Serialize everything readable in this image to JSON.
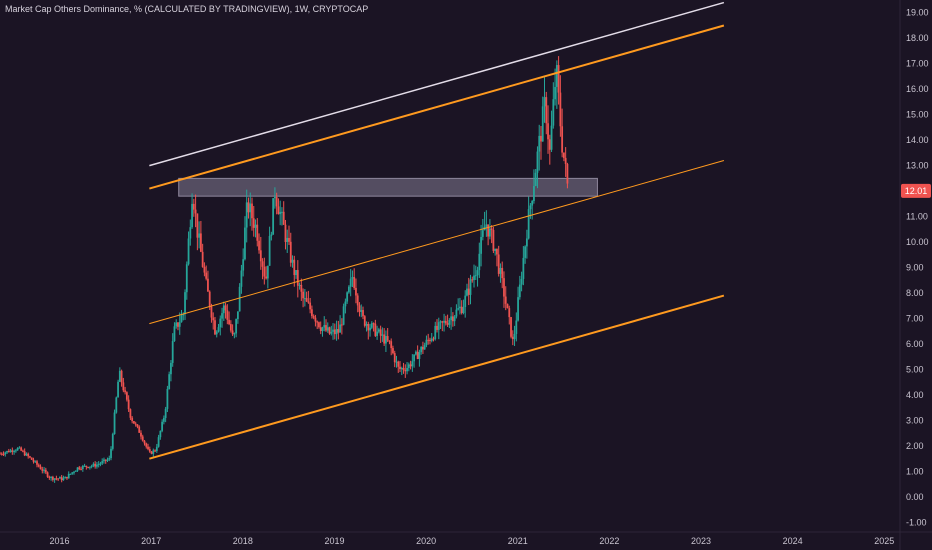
{
  "chart_data": {
    "type": "candlestick",
    "title": "Market Cap Others Dominance, % (CALCULATED BY TRADINGVIEW), 1W, CRYPTOCAP",
    "x_ticks": [
      "2016",
      "2017",
      "2018",
      "2019",
      "2020",
      "2021",
      "2022",
      "2023",
      "2024",
      "2025"
    ],
    "y_ticks": [
      "19.00",
      "18.00",
      "17.00",
      "16.00",
      "15.00",
      "14.00",
      "13.00",
      "12.00",
      "11.00",
      "10.00",
      "9.00",
      "8.00",
      "7.00",
      "6.00",
      "5.00",
      "4.00",
      "3.00",
      "2.00",
      "1.00",
      "0.00",
      "-1.00"
    ],
    "xlim": [
      2015.35,
      2025.15
    ],
    "ylim": [
      -1.3,
      19.5
    ],
    "last_value": "12.01",
    "colors": {
      "up": "#26a69a",
      "down": "#ef5350",
      "channel": "#ff9a1f",
      "top_line": "#e3dce8",
      "zone": "#9c93ad",
      "last_value_badge": "#ef5350"
    },
    "price_path": [
      [
        2015.35,
        1.7
      ],
      [
        2015.55,
        1.9
      ],
      [
        2015.7,
        1.45
      ],
      [
        2015.9,
        0.75
      ],
      [
        2016.05,
        0.7
      ],
      [
        2016.2,
        1.15
      ],
      [
        2016.4,
        1.25
      ],
      [
        2016.55,
        1.5
      ],
      [
        2016.65,
        4.9
      ],
      [
        2016.78,
        3.1
      ],
      [
        2016.88,
        2.5
      ],
      [
        2016.98,
        1.7
      ],
      [
        2017.05,
        1.85
      ],
      [
        2017.15,
        3.3
      ],
      [
        2017.25,
        6.5
      ],
      [
        2017.35,
        7.2
      ],
      [
        2017.45,
        12.1
      ],
      [
        2017.5,
        10.5
      ],
      [
        2017.6,
        8.3
      ],
      [
        2017.7,
        6.5
      ],
      [
        2017.8,
        7.5
      ],
      [
        2017.9,
        6.1
      ],
      [
        2017.95,
        7.5
      ],
      [
        2018.05,
        11.5
      ],
      [
        2018.15,
        10.5
      ],
      [
        2018.25,
        8.5
      ],
      [
        2018.35,
        12.0
      ],
      [
        2018.45,
        10.5
      ],
      [
        2018.55,
        9.0
      ],
      [
        2018.65,
        7.8
      ],
      [
        2018.75,
        7.3
      ],
      [
        2018.85,
        6.7
      ],
      [
        2018.95,
        6.4
      ],
      [
        2019.05,
        6.5
      ],
      [
        2019.2,
        8.7
      ],
      [
        2019.3,
        7.0
      ],
      [
        2019.45,
        6.5
      ],
      [
        2019.6,
        6.0
      ],
      [
        2019.7,
        5.0
      ],
      [
        2019.8,
        5.1
      ],
      [
        2019.95,
        5.8
      ],
      [
        2020.1,
        6.5
      ],
      [
        2020.25,
        7.0
      ],
      [
        2020.4,
        7.5
      ],
      [
        2020.55,
        9.0
      ],
      [
        2020.65,
        10.8
      ],
      [
        2020.75,
        9.8
      ],
      [
        2020.85,
        8.0
      ],
      [
        2020.95,
        6.0
      ],
      [
        2021.0,
        7.5
      ],
      [
        2021.1,
        10.5
      ],
      [
        2021.2,
        13.0
      ],
      [
        2021.3,
        15.5
      ],
      [
        2021.35,
        13.5
      ],
      [
        2021.42,
        16.8
      ],
      [
        2021.48,
        14.0
      ],
      [
        2021.55,
        12.0
      ]
    ],
    "trendlines": [
      {
        "name": "top_white",
        "x1": 2016.98,
        "y1": 13.0,
        "x2": 2023.25,
        "y2": 19.4
      },
      {
        "name": "upper_channel",
        "x1": 2016.98,
        "y1": 12.1,
        "x2": 2023.25,
        "y2": 18.5
      },
      {
        "name": "mid_channel",
        "x1": 2016.98,
        "y1": 6.8,
        "x2": 2023.25,
        "y2": 13.2
      },
      {
        "name": "lower_channel",
        "x1": 2016.98,
        "y1": 1.5,
        "x2": 2023.25,
        "y2": 7.9
      }
    ],
    "zone": {
      "x1": 2017.3,
      "x2": 2021.87,
      "y1": 11.8,
      "y2": 12.5
    }
  }
}
